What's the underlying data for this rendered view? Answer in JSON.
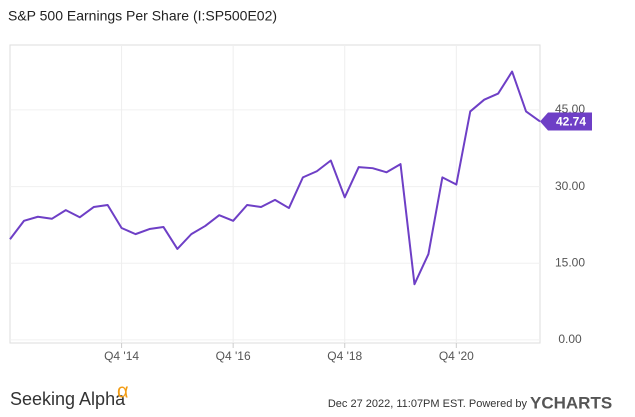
{
  "chart_data": {
    "type": "line",
    "title": "S&P 500 Earnings Per Share (I:SP500E02)",
    "categories": [
      null,
      null,
      null,
      null,
      null,
      null,
      null,
      null,
      "Q4 '14",
      null,
      null,
      null,
      null,
      null,
      null,
      null,
      "Q4 '16",
      null,
      null,
      null,
      null,
      null,
      null,
      null,
      "Q4 '18",
      null,
      null,
      null,
      null,
      null,
      null,
      null,
      "Q4 '20",
      null,
      null,
      null,
      null,
      null,
      null
    ],
    "series": [
      {
        "name": "S&P 500 Earnings Per Share",
        "color": "#6e3fc6",
        "values": [
          19.7,
          23.3,
          24.1,
          23.7,
          25.4,
          24.0,
          26.0,
          26.4,
          21.9,
          20.7,
          21.7,
          22.1,
          17.8,
          20.7,
          22.3,
          24.4,
          23.3,
          26.4,
          26.0,
          27.4,
          25.8,
          31.8,
          33.0,
          35.1,
          27.9,
          33.8,
          33.6,
          32.8,
          34.4,
          10.9,
          16.8,
          31.8,
          30.4,
          44.7,
          47.0,
          48.2,
          52.5,
          44.7,
          42.74
        ]
      }
    ],
    "ylim": [
      -0.6,
      57.7
    ],
    "yticks": [
      {
        "value": 0,
        "label": "0.00"
      },
      {
        "value": 15,
        "label": "15.00"
      },
      {
        "value": 30,
        "label": "30.00"
      },
      {
        "value": 45,
        "label": "45.00"
      }
    ],
    "grid": true
  },
  "footer": {
    "brand": "Seeking Alpha",
    "brand_symbol": "α",
    "timestamp": "Dec 27 2022, 11:07PM EST.  Powered by",
    "provider": "YCHARTS"
  }
}
